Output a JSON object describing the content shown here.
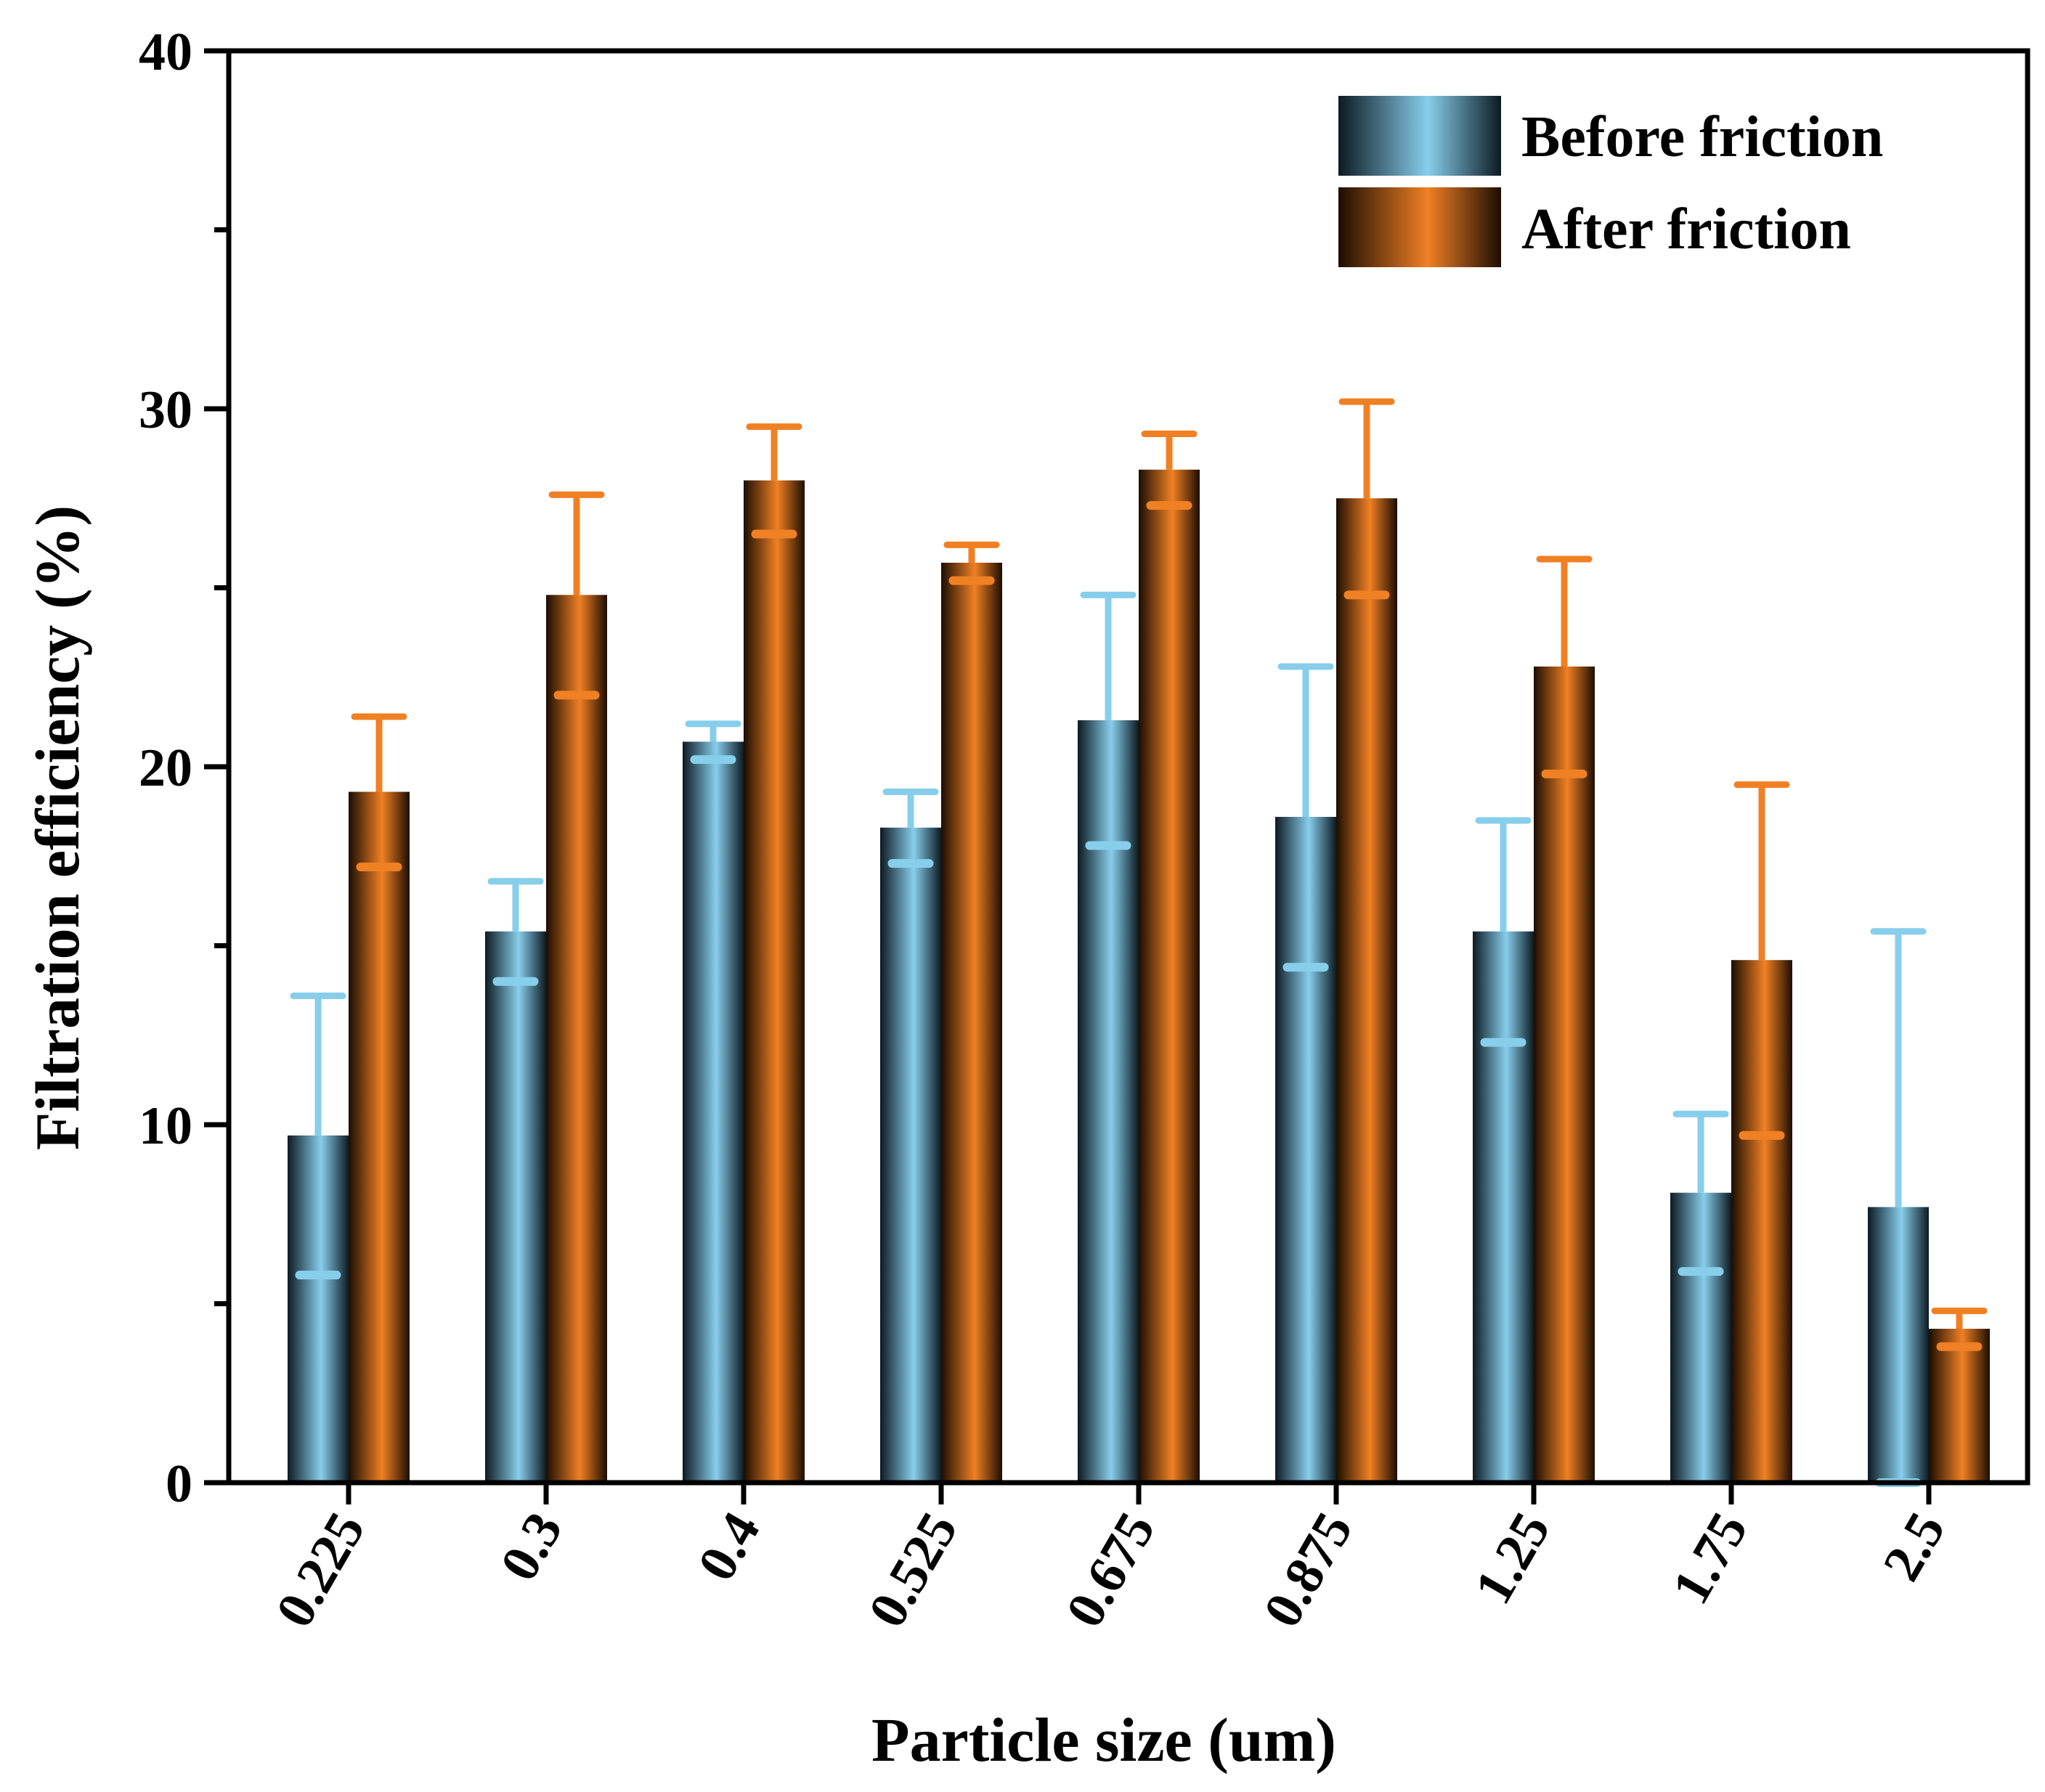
{
  "chart_data": {
    "type": "bar",
    "title": "",
    "xlabel": "Particle size (um)",
    "ylabel": "Filtration efficiency (%)",
    "ylim": [
      0,
      40
    ],
    "yticks": [
      "0",
      "10",
      "20",
      "30",
      "40"
    ],
    "categories": [
      "0.225",
      "0.3",
      "0.4",
      "0.525",
      "0.675",
      "0.875",
      "1.25",
      "1.75",
      "2.5"
    ],
    "series": [
      {
        "name": "Before friction",
        "values": [
          9.7,
          15.4,
          20.7,
          18.3,
          21.3,
          18.6,
          15.4,
          8.1,
          7.7
        ],
        "errors": [
          3.9,
          1.4,
          0.5,
          1.0,
          3.5,
          4.2,
          3.1,
          2.2,
          7.7
        ],
        "color": "#87CEEB",
        "shade": "#0d1a22"
      },
      {
        "name": "After friction",
        "values": [
          19.3,
          24.8,
          28.0,
          25.7,
          28.3,
          27.5,
          22.8,
          14.6,
          4.3
        ],
        "errors": [
          2.1,
          2.8,
          1.5,
          0.5,
          1.0,
          2.7,
          3.0,
          4.9,
          0.5
        ],
        "color": "#F08024",
        "shade": "#1c0d02"
      }
    ],
    "legend_position": "top-right",
    "grid": false
  }
}
